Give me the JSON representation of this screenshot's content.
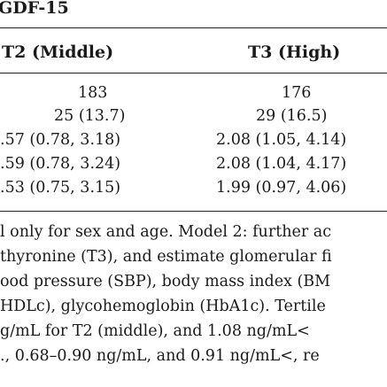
{
  "table": {
    "title": "GDF-15",
    "headers": [
      "T2 (Middle)",
      "T3 (High)"
    ],
    "rows": [
      [
        "183",
        "176"
      ],
      [
        "25 (13.7)",
        "29 (16.5)"
      ],
      [
        ".57 (0.78, 3.18)",
        "2.08 (1.05, 4.14)"
      ],
      [
        ".59 (0.78, 3.24)",
        "2.08 (1.04, 4.17)"
      ],
      [
        ".53 (0.75, 3.15)",
        "1.99 (0.97, 4.06)"
      ]
    ]
  },
  "footnote": {
    "lines": [
      "l only for sex and age. Model 2: further ac",
      "thyronine (T3), and estimate glomerular fi",
      "ood pressure (SBP), body mass index (BM",
      "HDLc), glycohemoglobin (HbA1c). Tertile",
      "g/mL for T2 (middle), and 1.08 ng/mL<",
      "., 0.68–0.90 ng/mL, and 0.91 ng/mL<, re"
    ]
  }
}
